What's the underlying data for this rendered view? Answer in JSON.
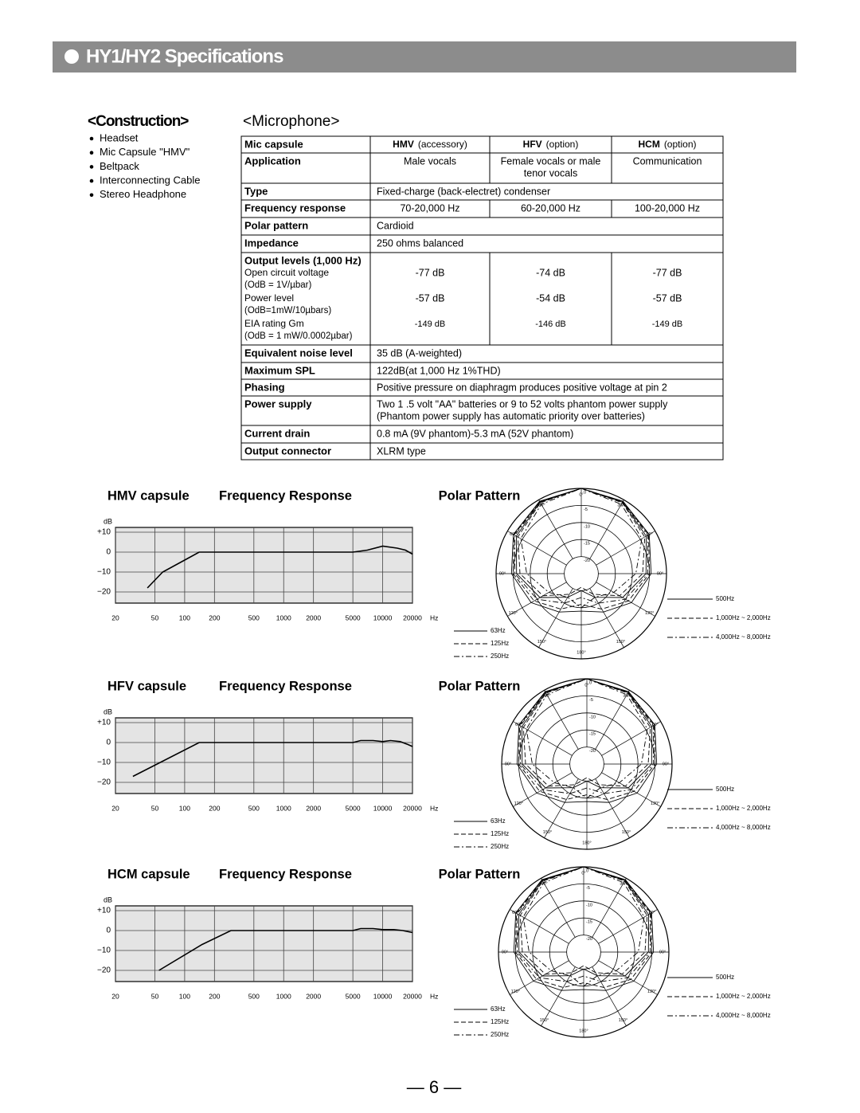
{
  "header": {
    "title": "HY1/HY2 Specifications"
  },
  "construction": {
    "heading": "<Construction>",
    "items": [
      "Headset",
      "Mic Capsule \"HMV\"",
      "Beltpack",
      "Interconnecting Cable",
      "Stereo Headphone"
    ]
  },
  "microphone": {
    "heading": "<Microphone>"
  },
  "table": {
    "header": {
      "label": "Mic capsule",
      "cols": [
        [
          "HMV",
          "(accessory)"
        ],
        [
          "HFV",
          "(option)"
        ],
        [
          "HCM",
          "(option)"
        ]
      ]
    },
    "rows": [
      {
        "label": "Application",
        "cells": [
          [
            "Male vocals"
          ],
          [
            "Female vocals or male",
            "tenor vocals"
          ],
          [
            "Communication"
          ]
        ]
      },
      {
        "label": "Type",
        "cells": [
          [
            "Fixed-charge (back-electret) condenser"
          ]
        ]
      },
      {
        "label": "Frequency response",
        "cells": [
          [
            "70-20,000 Hz"
          ],
          [
            "60-20,000 Hz"
          ],
          [
            "100-20,000 Hz"
          ]
        ]
      },
      {
        "label": "Polar pattern",
        "cells": [
          [
            "Cardioid"
          ]
        ]
      },
      {
        "label": "Impedance",
        "cells": [
          [
            "250 ohms balanced"
          ]
        ]
      },
      {
        "label": "Output levels (1,000 Hz)",
        "sub": [
          {
            "label": "Open circuit voltage",
            "note": "(OdB = 1V/µbar)",
            "values": [
              "-77 dB",
              "-74 dB",
              "-77 dB"
            ]
          },
          {
            "label": "Power level",
            "note": "(OdB=1mW/10µbars)",
            "values": [
              "-57 dB",
              "-54 dB",
              "-57 dB"
            ]
          },
          {
            "label": "EIA rating Gm",
            "note": "(OdB = 1 mW/0.0002µbar)",
            "values": [
              "-149 dB",
              "-146 dB",
              "-149 dB"
            ]
          }
        ]
      },
      {
        "label": "Equivalent noise level",
        "cells": [
          [
            "35 dB (A-weighted)"
          ]
        ]
      },
      {
        "label": "Maximum SPL",
        "cells": [
          [
            "122dB(at 1,000 Hz 1%THD)"
          ]
        ]
      },
      {
        "label": "Phasing",
        "cells": [
          [
            "Positive pressure on diaphragm produces positive voltage at pin 2"
          ]
        ]
      },
      {
        "label": "Power supply",
        "cells": [
          [
            "Two 1 .5 volt \"AA\" batteries or 9 to 52 volts phantom power supply",
            "(Phantom power supply has automatic priority over batteries)"
          ]
        ]
      },
      {
        "label": "Current drain",
        "cells": [
          [
            "0.8 mA (9V phantom)-5.3 mA (52V phantom)"
          ]
        ]
      },
      {
        "label": "Output connector",
        "cells": [
          [
            "XLRM type"
          ]
        ]
      }
    ]
  },
  "chart_data": [
    {
      "type": "line",
      "title": "HMV capsule",
      "subtitle": "Frequency Response",
      "ylabel": "dB",
      "xlabel": "Hz",
      "log_x": true,
      "grid": true,
      "color": "#000000",
      "x": [
        42,
        60,
        100,
        140,
        1000,
        5000,
        7000,
        10000,
        14000,
        17000,
        20000
      ],
      "values": [
        -18,
        -10,
        -4,
        0,
        0,
        0,
        1,
        3,
        2,
        1,
        -1
      ],
      "xlim": [
        20,
        20000
      ],
      "xticks": [
        20,
        50,
        100,
        200,
        500,
        1000,
        2000,
        5000,
        10000,
        20000
      ],
      "ylim": [
        -25.6,
        12.4
      ],
      "yticks": [
        {
          "value": 10,
          "label": "+10"
        },
        0,
        {
          "value": -10,
          "label": "−10"
        },
        {
          "value": -20,
          "label": "−20"
        }
      ]
    },
    {
      "type": "polar",
      "title": "Polar Pattern",
      "color": "#000000",
      "x": [
        0,
        30,
        60,
        90,
        120,
        150,
        180,
        210,
        240,
        270,
        300,
        330
      ],
      "thetaticks": [
        {
          "value": 0,
          "label": "0°"
        },
        {
          "value": 30,
          "label": "30°"
        },
        {
          "value": 60,
          "label": "60°"
        },
        {
          "value": 90,
          "label": "90°"
        },
        {
          "value": 120,
          "label": "120°"
        },
        {
          "value": 150,
          "label": "150°"
        },
        {
          "value": 180,
          "label": "180°"
        },
        {
          "value": 210,
          "label": "150°"
        },
        {
          "value": 240,
          "label": "120°"
        },
        {
          "value": 270,
          "label": "90°"
        },
        {
          "value": 300,
          "label": "60°"
        },
        {
          "value": 330,
          "label": "30°"
        }
      ],
      "rlim": [
        -25,
        0
      ],
      "rticks": [
        0,
        -5,
        -10,
        -15,
        -20
      ],
      "series": [
        {
          "name": "63Hz",
          "dash": "solid",
          "values": [
            0,
            -0.5,
            -2,
            -4.5,
            -8,
            -12,
            -14,
            -12,
            -8,
            -4.5,
            -2,
            -0.5
          ]
        },
        {
          "name": "125Hz",
          "dash": "dashed",
          "values": [
            0,
            -0.6,
            -2.2,
            -5,
            -9,
            -13,
            -16,
            -13,
            -9,
            -5,
            -2.2,
            -0.6
          ]
        },
        {
          "name": "250Hz",
          "dash": "dashdot",
          "values": [
            0,
            -0.7,
            -2.5,
            -5.5,
            -10,
            -15,
            -18,
            -15,
            -10,
            -5.5,
            -2.5,
            -0.7
          ]
        },
        {
          "name": "500Hz",
          "dash": "solid",
          "values": [
            0,
            -0.8,
            -3,
            -6,
            -11,
            -17,
            -20,
            -17,
            -11,
            -6,
            -3,
            -0.8
          ]
        },
        {
          "name": "1,000Hz ~ 2,000Hz",
          "dash": "dashed",
          "values": [
            0,
            -1,
            -3.5,
            -7,
            -12,
            -18,
            -21,
            -18,
            -12,
            -7,
            -3.5,
            -1
          ]
        },
        {
          "name": "4,000Hz ~ 8,000Hz",
          "dash": "dashdot",
          "values": [
            0,
            -1.5,
            -4.5,
            -9,
            -14,
            -17,
            -15,
            -17,
            -14,
            -9,
            -4.5,
            -1.5
          ]
        }
      ]
    },
    {
      "type": "line",
      "title": "HFV capsule",
      "subtitle": "Frequency Response",
      "ylabel": "dB",
      "xlabel": "Hz",
      "log_x": true,
      "grid": true,
      "color": "#000000",
      "x": [
        30,
        140,
        1000,
        5000,
        6000,
        8000,
        10000,
        12000,
        15000,
        18000,
        20000
      ],
      "values": [
        -17,
        0,
        0,
        0,
        1,
        1,
        0.5,
        1,
        0.5,
        -1,
        -2
      ],
      "xlim": [
        20,
        20000
      ],
      "xticks": [
        20,
        50,
        100,
        200,
        500,
        1000,
        2000,
        5000,
        10000,
        20000
      ],
      "ylim": [
        -25.6,
        12.4
      ],
      "yticks": [
        {
          "value": 10,
          "label": "+10"
        },
        0,
        {
          "value": -10,
          "label": "−10"
        },
        {
          "value": -20,
          "label": "−20"
        }
      ]
    },
    {
      "type": "polar",
      "title": "Polar Pattern",
      "color": "#000000",
      "x": [
        0,
        30,
        60,
        90,
        120,
        150,
        180,
        210,
        240,
        270,
        300,
        330
      ],
      "thetaticks": [
        {
          "value": 0,
          "label": "0°"
        },
        {
          "value": 30,
          "label": "30°"
        },
        {
          "value": 60,
          "label": "60°"
        },
        {
          "value": 90,
          "label": "90°"
        },
        {
          "value": 120,
          "label": "120°"
        },
        {
          "value": 150,
          "label": "150°"
        },
        {
          "value": 180,
          "label": "180°"
        },
        {
          "value": 210,
          "label": "150°"
        },
        {
          "value": 240,
          "label": "120°"
        },
        {
          "value": 270,
          "label": "90°"
        },
        {
          "value": 300,
          "label": "60°"
        },
        {
          "value": 330,
          "label": "30°"
        }
      ],
      "rlim": [
        -25,
        0
      ],
      "rticks": [
        0,
        -5,
        -10,
        -15,
        -20
      ],
      "series": [
        {
          "name": "63Hz",
          "dash": "solid",
          "values": [
            0,
            -0.5,
            -2,
            -4.5,
            -8,
            -12,
            -14,
            -12,
            -8,
            -4.5,
            -2,
            -0.5
          ]
        },
        {
          "name": "125Hz",
          "dash": "dashed",
          "values": [
            0,
            -0.6,
            -2.2,
            -5,
            -9,
            -13,
            -16,
            -13,
            -9,
            -5,
            -2.2,
            -0.6
          ]
        },
        {
          "name": "250Hz",
          "dash": "dashdot",
          "values": [
            0,
            -0.7,
            -2.5,
            -5.5,
            -10,
            -15,
            -18,
            -15,
            -10,
            -5.5,
            -2.5,
            -0.7
          ]
        },
        {
          "name": "500Hz",
          "dash": "solid",
          "values": [
            0,
            -0.8,
            -3,
            -6,
            -11,
            -17,
            -20,
            -17,
            -11,
            -6,
            -3,
            -0.8
          ]
        },
        {
          "name": "1,000Hz ~ 2,000Hz",
          "dash": "dashed",
          "values": [
            0,
            -1,
            -3.5,
            -7,
            -12,
            -18,
            -21,
            -18,
            -12,
            -7,
            -3.5,
            -1
          ]
        },
        {
          "name": "4,000Hz ~ 8,000Hz",
          "dash": "dashdot",
          "values": [
            0,
            -1.5,
            -4.5,
            -9,
            -14,
            -17,
            -15,
            -17,
            -14,
            -9,
            -4.5,
            -1.5
          ]
        }
      ]
    },
    {
      "type": "line",
      "title": "HCM capsule",
      "subtitle": "Frequency Response",
      "ylabel": "dB",
      "xlabel": "Hz",
      "log_x": true,
      "grid": true,
      "color": "#000000",
      "x": [
        55,
        150,
        293,
        1000,
        5000,
        6000,
        8000,
        10000,
        13000,
        16000,
        20000
      ],
      "values": [
        -20,
        -7,
        0,
        0,
        0,
        1,
        1,
        0.5,
        0.5,
        0,
        -1
      ],
      "xlim": [
        20,
        20000
      ],
      "xticks": [
        20,
        50,
        100,
        200,
        500,
        1000,
        2000,
        5000,
        10000,
        20000
      ],
      "ylim": [
        -25.6,
        12.4
      ],
      "yticks": [
        {
          "value": 10,
          "label": "+10"
        },
        0,
        {
          "value": -10,
          "label": "−10"
        },
        {
          "value": -20,
          "label": "−20"
        }
      ]
    },
    {
      "type": "polar",
      "title": "Polar Pattern",
      "color": "#000000",
      "x": [
        0,
        30,
        60,
        90,
        120,
        150,
        180,
        210,
        240,
        270,
        300,
        330
      ],
      "thetaticks": [
        {
          "value": 0,
          "label": "0°"
        },
        {
          "value": 30,
          "label": "30°"
        },
        {
          "value": 60,
          "label": "60°"
        },
        {
          "value": 90,
          "label": "90°"
        },
        {
          "value": 120,
          "label": "120°"
        },
        {
          "value": 150,
          "label": "150°"
        },
        {
          "value": 180,
          "label": "180°"
        },
        {
          "value": 210,
          "label": "150°"
        },
        {
          "value": 240,
          "label": "120°"
        },
        {
          "value": 270,
          "label": "90°"
        },
        {
          "value": 300,
          "label": "60°"
        },
        {
          "value": 330,
          "label": "30°"
        }
      ],
      "rlim": [
        -25,
        0
      ],
      "rticks": [
        0,
        -5,
        -10,
        -15,
        -20
      ],
      "series": [
        {
          "name": "63Hz",
          "dash": "solid",
          "values": [
            0,
            -0.5,
            -2,
            -4.5,
            -8,
            -12,
            -14,
            -12,
            -8,
            -4.5,
            -2,
            -0.5
          ]
        },
        {
          "name": "125Hz",
          "dash": "dashed",
          "values": [
            0,
            -0.6,
            -2.2,
            -5,
            -9,
            -13,
            -16,
            -13,
            -9,
            -5,
            -2.2,
            -0.6
          ]
        },
        {
          "name": "250Hz",
          "dash": "dashdot",
          "values": [
            0,
            -0.7,
            -2.5,
            -5.5,
            -10,
            -15,
            -18,
            -15,
            -10,
            -5.5,
            -2.5,
            -0.7
          ]
        },
        {
          "name": "500Hz",
          "dash": "solid",
          "values": [
            0,
            -0.8,
            -3,
            -6,
            -11,
            -17,
            -20,
            -17,
            -11,
            -6,
            -3,
            -0.8
          ]
        },
        {
          "name": "1,000Hz ~ 2,000Hz",
          "dash": "dashed",
          "values": [
            0,
            -1,
            -3.5,
            -7,
            -12,
            -18,
            -21,
            -18,
            -12,
            -7,
            -3.5,
            -1
          ]
        },
        {
          "name": "4,000Hz ~ 8,000Hz",
          "dash": "dashdot",
          "values": [
            0,
            -1.5,
            -4.5,
            -9,
            -14,
            -17,
            -15,
            -17,
            -14,
            -9,
            -4.5,
            -1.5
          ]
        }
      ]
    }
  ],
  "footer": {
    "page": "— 6 —"
  }
}
